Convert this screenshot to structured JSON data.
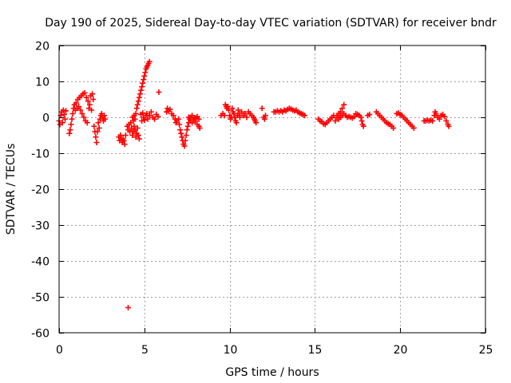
{
  "chart_data": {
    "type": "scatter",
    "title": "Day 190 of 2025, Sidereal Day-to-day VTEC variation (SDTVAR) for receiver bndr",
    "xlabel": "GPS time / hours",
    "ylabel": "SDTVAR / TECUs",
    "xlim": [
      0,
      25
    ],
    "ylim": [
      -60,
      20
    ],
    "xticks": [
      0,
      5,
      10,
      15,
      20,
      25
    ],
    "yticks": [
      -60,
      -50,
      -40,
      -30,
      -20,
      -10,
      0,
      10,
      20
    ],
    "xtick_labels": [
      "0",
      "5",
      "10",
      "15",
      "20",
      "25"
    ],
    "ytick_labels": [
      "-60",
      "-50",
      "-40",
      "-30",
      "-20",
      "-10",
      "0",
      "10",
      "20"
    ],
    "grid": true,
    "marker": "+",
    "color": "#ff0000",
    "series": [
      {
        "name": "SDTVAR",
        "points": [
          [
            0.0,
            -1.0
          ],
          [
            0.05,
            -2.0
          ],
          [
            0.1,
            0.5
          ],
          [
            0.15,
            1.5
          ],
          [
            0.2,
            -1.5
          ],
          [
            0.25,
            2.0
          ],
          [
            0.3,
            0.8
          ],
          [
            0.35,
            -0.5
          ],
          [
            0.4,
            1.8
          ],
          [
            0.6,
            -4.5
          ],
          [
            0.65,
            -3.5
          ],
          [
            0.7,
            -2.0
          ],
          [
            0.75,
            -0.5
          ],
          [
            0.8,
            1.0
          ],
          [
            0.85,
            2.5
          ],
          [
            0.9,
            3.5
          ],
          [
            0.95,
            2.0
          ],
          [
            1.0,
            4.0
          ],
          [
            1.05,
            2.5
          ],
          [
            1.1,
            5.0
          ],
          [
            1.15,
            3.0
          ],
          [
            1.2,
            5.5
          ],
          [
            1.25,
            2.0
          ],
          [
            1.3,
            6.0
          ],
          [
            1.35,
            1.0
          ],
          [
            1.4,
            6.5
          ],
          [
            1.45,
            0.0
          ],
          [
            1.5,
            6.8
          ],
          [
            1.55,
            -1.0
          ],
          [
            1.6,
            5.5
          ],
          [
            1.65,
            -1.5
          ],
          [
            1.7,
            4.5
          ],
          [
            1.75,
            2.5
          ],
          [
            1.8,
            3.5
          ],
          [
            1.85,
            6.0
          ],
          [
            1.9,
            2.0
          ],
          [
            1.95,
            6.5
          ],
          [
            2.0,
            5.0
          ],
          [
            2.05,
            -2.5
          ],
          [
            2.1,
            -4.0
          ],
          [
            2.15,
            -5.5
          ],
          [
            2.2,
            -7.0
          ],
          [
            2.25,
            -4.0
          ],
          [
            2.3,
            -1.5
          ],
          [
            2.35,
            -3.0
          ],
          [
            2.4,
            -0.5
          ],
          [
            2.45,
            0.5
          ],
          [
            2.5,
            1.0
          ],
          [
            2.55,
            0.0
          ],
          [
            2.6,
            -1.0
          ],
          [
            2.65,
            0.5
          ],
          [
            2.7,
            -0.5
          ],
          [
            3.5,
            -5.5
          ],
          [
            3.55,
            -6.5
          ],
          [
            3.6,
            -5.0
          ],
          [
            3.65,
            -6.0
          ],
          [
            3.7,
            -7.0
          ],
          [
            3.75,
            -6.0
          ],
          [
            3.8,
            -6.5
          ],
          [
            3.85,
            -7.5
          ],
          [
            3.9,
            -5.0
          ],
          [
            4.0,
            -2.5
          ],
          [
            4.05,
            -3.5
          ],
          [
            4.1,
            -2.0
          ],
          [
            4.15,
            -4.0
          ],
          [
            4.2,
            -1.5
          ],
          [
            4.25,
            -3.0
          ],
          [
            4.3,
            -5.0
          ],
          [
            4.35,
            -4.0
          ],
          [
            4.4,
            -2.5
          ],
          [
            4.45,
            -3.5
          ],
          [
            4.5,
            -5.5
          ],
          [
            4.55,
            -4.5
          ],
          [
            4.6,
            -3.0
          ],
          [
            4.65,
            -5.0
          ],
          [
            4.7,
            -6.0
          ],
          [
            4.05,
            -53.0
          ],
          [
            4.5,
            1.0
          ],
          [
            4.55,
            2.5
          ],
          [
            4.6,
            3.5
          ],
          [
            4.65,
            4.5
          ],
          [
            4.7,
            5.5
          ],
          [
            4.75,
            6.5
          ],
          [
            4.8,
            7.5
          ],
          [
            4.85,
            8.5
          ],
          [
            4.9,
            9.5
          ],
          [
            4.95,
            10.5
          ],
          [
            5.0,
            11.5
          ],
          [
            5.05,
            12.5
          ],
          [
            5.1,
            13.5
          ],
          [
            5.15,
            14.0
          ],
          [
            5.2,
            14.5
          ],
          [
            5.25,
            15.0
          ],
          [
            5.3,
            15.5
          ],
          [
            4.3,
            0.0
          ],
          [
            4.35,
            -1.0
          ],
          [
            4.4,
            0.5
          ],
          [
            4.45,
            -0.5
          ],
          [
            4.8,
            0.8
          ],
          [
            4.85,
            -1.0
          ],
          [
            4.9,
            1.2
          ],
          [
            4.95,
            0.0
          ],
          [
            5.0,
            -0.8
          ],
          [
            5.1,
            0.5
          ],
          [
            5.15,
            1.0
          ],
          [
            5.2,
            -0.5
          ],
          [
            5.3,
            0.5
          ],
          [
            5.4,
            1.5
          ],
          [
            5.5,
            0.0
          ],
          [
            5.6,
            -0.5
          ],
          [
            5.7,
            0.8
          ],
          [
            5.8,
            0.2
          ],
          [
            5.85,
            7.0
          ],
          [
            6.3,
            1.5
          ],
          [
            6.35,
            2.5
          ],
          [
            6.4,
            1.8
          ],
          [
            6.5,
            2.2
          ],
          [
            6.6,
            1.0
          ],
          [
            6.7,
            0.5
          ],
          [
            6.8,
            -0.5
          ],
          [
            6.85,
            -1.5
          ],
          [
            6.9,
            -1.0
          ],
          [
            7.0,
            -0.5
          ],
          [
            7.05,
            -2.0
          ],
          [
            7.1,
            -3.5
          ],
          [
            7.15,
            -4.5
          ],
          [
            7.2,
            -5.5
          ],
          [
            7.25,
            -6.5
          ],
          [
            7.3,
            -7.5
          ],
          [
            7.35,
            -8.0
          ],
          [
            7.4,
            -6.5
          ],
          [
            7.45,
            -5.0
          ],
          [
            7.5,
            -3.5
          ],
          [
            7.55,
            -2.5
          ],
          [
            7.6,
            -1.5
          ],
          [
            7.65,
            -0.5
          ],
          [
            7.7,
            0.0
          ],
          [
            7.8,
            0.5
          ],
          [
            7.9,
            -0.5
          ],
          [
            8.0,
            -1.0
          ],
          [
            8.1,
            -2.0
          ],
          [
            8.2,
            -2.5
          ],
          [
            8.25,
            -3.0
          ],
          [
            7.6,
            0.0
          ],
          [
            7.7,
            -1.0
          ],
          [
            7.8,
            -1.5
          ],
          [
            7.9,
            -1.0
          ],
          [
            8.0,
            -0.2
          ],
          [
            8.1,
            0.2
          ],
          [
            8.2,
            -0.5
          ],
          [
            9.5,
            0.5
          ],
          [
            9.6,
            1.0
          ],
          [
            9.7,
            0.5
          ],
          [
            9.75,
            3.5
          ],
          [
            9.8,
            3.0
          ],
          [
            9.85,
            2.5
          ],
          [
            9.9,
            3.0
          ],
          [
            9.95,
            2.0
          ],
          [
            10.0,
            0.5
          ],
          [
            10.05,
            -0.5
          ],
          [
            10.1,
            0.0
          ],
          [
            10.15,
            2.5
          ],
          [
            10.2,
            1.5
          ],
          [
            10.25,
            1.0
          ],
          [
            10.3,
            0.0
          ],
          [
            10.35,
            -1.0
          ],
          [
            10.4,
            -1.5
          ],
          [
            10.45,
            0.5
          ],
          [
            10.5,
            2.0
          ],
          [
            10.55,
            1.0
          ],
          [
            10.6,
            0.0
          ],
          [
            10.7,
            1.5
          ],
          [
            10.8,
            0.5
          ],
          [
            10.9,
            1.0
          ],
          [
            11.0,
            0.0
          ],
          [
            11.1,
            1.5
          ],
          [
            11.2,
            1.0
          ],
          [
            11.3,
            0.5
          ],
          [
            11.4,
            0.0
          ],
          [
            11.45,
            -0.5
          ],
          [
            11.5,
            -1.0
          ],
          [
            11.55,
            -1.5
          ],
          [
            11.9,
            2.5
          ],
          [
            12.0,
            0.0
          ],
          [
            12.05,
            -0.5
          ],
          [
            12.1,
            0.5
          ],
          [
            12.6,
            1.5
          ],
          [
            12.7,
            1.5
          ],
          [
            12.8,
            1.8
          ],
          [
            12.9,
            1.5
          ],
          [
            13.0,
            1.8
          ],
          [
            13.1,
            1.5
          ],
          [
            13.2,
            2.0
          ],
          [
            13.3,
            1.8
          ],
          [
            13.4,
            2.2
          ],
          [
            13.5,
            2.5
          ],
          [
            13.6,
            2.3
          ],
          [
            13.7,
            2.0
          ],
          [
            13.8,
            1.8
          ],
          [
            13.9,
            2.0
          ],
          [
            14.0,
            1.5
          ],
          [
            14.1,
            1.2
          ],
          [
            14.2,
            1.0
          ],
          [
            14.3,
            0.8
          ],
          [
            14.4,
            0.5
          ],
          [
            15.2,
            -0.5
          ],
          [
            15.3,
            -1.0
          ],
          [
            15.4,
            -1.2
          ],
          [
            15.5,
            -1.8
          ],
          [
            15.6,
            -2.0
          ],
          [
            15.7,
            -1.5
          ],
          [
            15.8,
            -1.0
          ],
          [
            15.9,
            -0.5
          ],
          [
            16.0,
            0.0
          ],
          [
            16.1,
            0.5
          ],
          [
            16.2,
            -1.0
          ],
          [
            16.3,
            0.0
          ],
          [
            16.4,
            1.0
          ],
          [
            16.5,
            1.5
          ],
          [
            16.6,
            2.5
          ],
          [
            16.7,
            3.5
          ],
          [
            16.3,
            0.5
          ],
          [
            16.4,
            -0.5
          ],
          [
            16.5,
            0.0
          ],
          [
            16.6,
            0.5
          ],
          [
            16.7,
            1.0
          ],
          [
            16.8,
            0.5
          ],
          [
            16.9,
            0.0
          ],
          [
            17.0,
            0.2
          ],
          [
            17.1,
            0.0
          ],
          [
            17.2,
            -0.2
          ],
          [
            17.3,
            0.2
          ],
          [
            17.4,
            1.0
          ],
          [
            17.5,
            0.8
          ],
          [
            17.6,
            0.5
          ],
          [
            17.7,
            0.0
          ],
          [
            17.75,
            -1.0
          ],
          [
            17.8,
            -2.0
          ],
          [
            17.85,
            -2.5
          ],
          [
            18.1,
            0.5
          ],
          [
            18.2,
            0.8
          ],
          [
            18.6,
            1.5
          ],
          [
            18.7,
            1.0
          ],
          [
            18.8,
            0.5
          ],
          [
            18.9,
            0.0
          ],
          [
            19.0,
            -0.5
          ],
          [
            19.1,
            -1.0
          ],
          [
            19.2,
            -1.5
          ],
          [
            19.3,
            -1.8
          ],
          [
            19.4,
            -2.0
          ],
          [
            19.5,
            -2.5
          ],
          [
            19.6,
            -3.0
          ],
          [
            19.8,
            1.0
          ],
          [
            19.9,
            1.2
          ],
          [
            20.0,
            0.8
          ],
          [
            20.1,
            0.5
          ],
          [
            20.2,
            0.0
          ],
          [
            20.3,
            -0.5
          ],
          [
            20.4,
            -1.0
          ],
          [
            20.5,
            -1.5
          ],
          [
            20.6,
            -2.0
          ],
          [
            20.7,
            -2.5
          ],
          [
            20.8,
            -3.0
          ],
          [
            21.4,
            -1.0
          ],
          [
            21.5,
            -1.0
          ],
          [
            21.6,
            -0.8
          ],
          [
            21.7,
            -1.0
          ],
          [
            21.8,
            -0.8
          ],
          [
            21.9,
            -1.0
          ],
          [
            22.0,
            0.5
          ],
          [
            22.05,
            1.5
          ],
          [
            22.1,
            1.0
          ],
          [
            22.2,
            0.0
          ],
          [
            22.3,
            -0.5
          ],
          [
            22.4,
            0.5
          ],
          [
            22.5,
            0.8
          ],
          [
            22.6,
            0.2
          ],
          [
            22.7,
            -1.0
          ],
          [
            22.8,
            -2.0
          ],
          [
            22.85,
            -2.5
          ]
        ]
      }
    ]
  }
}
